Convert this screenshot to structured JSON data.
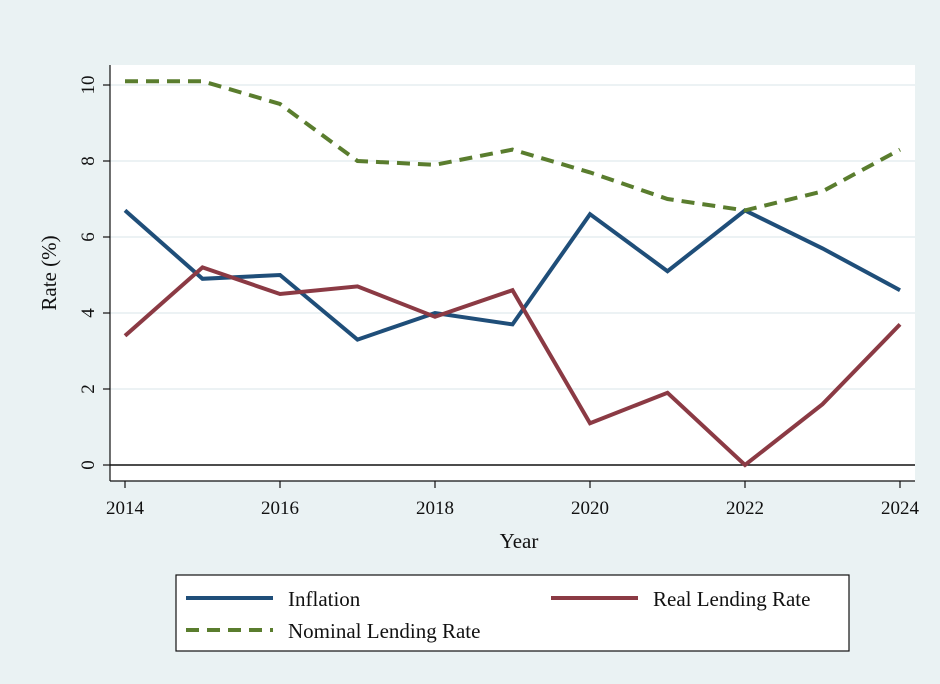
{
  "chart_data": {
    "type": "line",
    "xlabel": "Year",
    "ylabel": "Rate (%)",
    "xlim": [
      2014,
      2024
    ],
    "ylim": [
      0,
      10
    ],
    "x_ticks": [
      2014,
      2016,
      2018,
      2020,
      2022,
      2024
    ],
    "y_ticks": [
      0,
      2,
      4,
      6,
      8,
      10
    ],
    "grid": true,
    "legend_position": "bottom",
    "x": [
      2014,
      2015,
      2016,
      2017,
      2018,
      2019,
      2020,
      2021,
      2022,
      2023,
      2024
    ],
    "series": [
      {
        "name": "Inflation",
        "color": "#1f4e79",
        "style": "solid",
        "values": [
          6.7,
          4.9,
          5.0,
          3.3,
          4.0,
          3.7,
          6.6,
          5.1,
          6.7,
          5.7,
          4.6
        ]
      },
      {
        "name": "Real Lending Rate",
        "color": "#8b3a44",
        "style": "solid",
        "values": [
          3.4,
          5.2,
          4.5,
          4.7,
          3.9,
          4.6,
          1.1,
          1.9,
          0.0,
          1.6,
          3.7
        ]
      },
      {
        "name": "Nominal Lending Rate",
        "color": "#5a7d2e",
        "style": "dashed",
        "values": [
          10.1,
          10.1,
          9.5,
          8.0,
          7.9,
          8.3,
          7.7,
          7.0,
          6.7,
          7.2,
          8.3
        ]
      }
    ]
  }
}
